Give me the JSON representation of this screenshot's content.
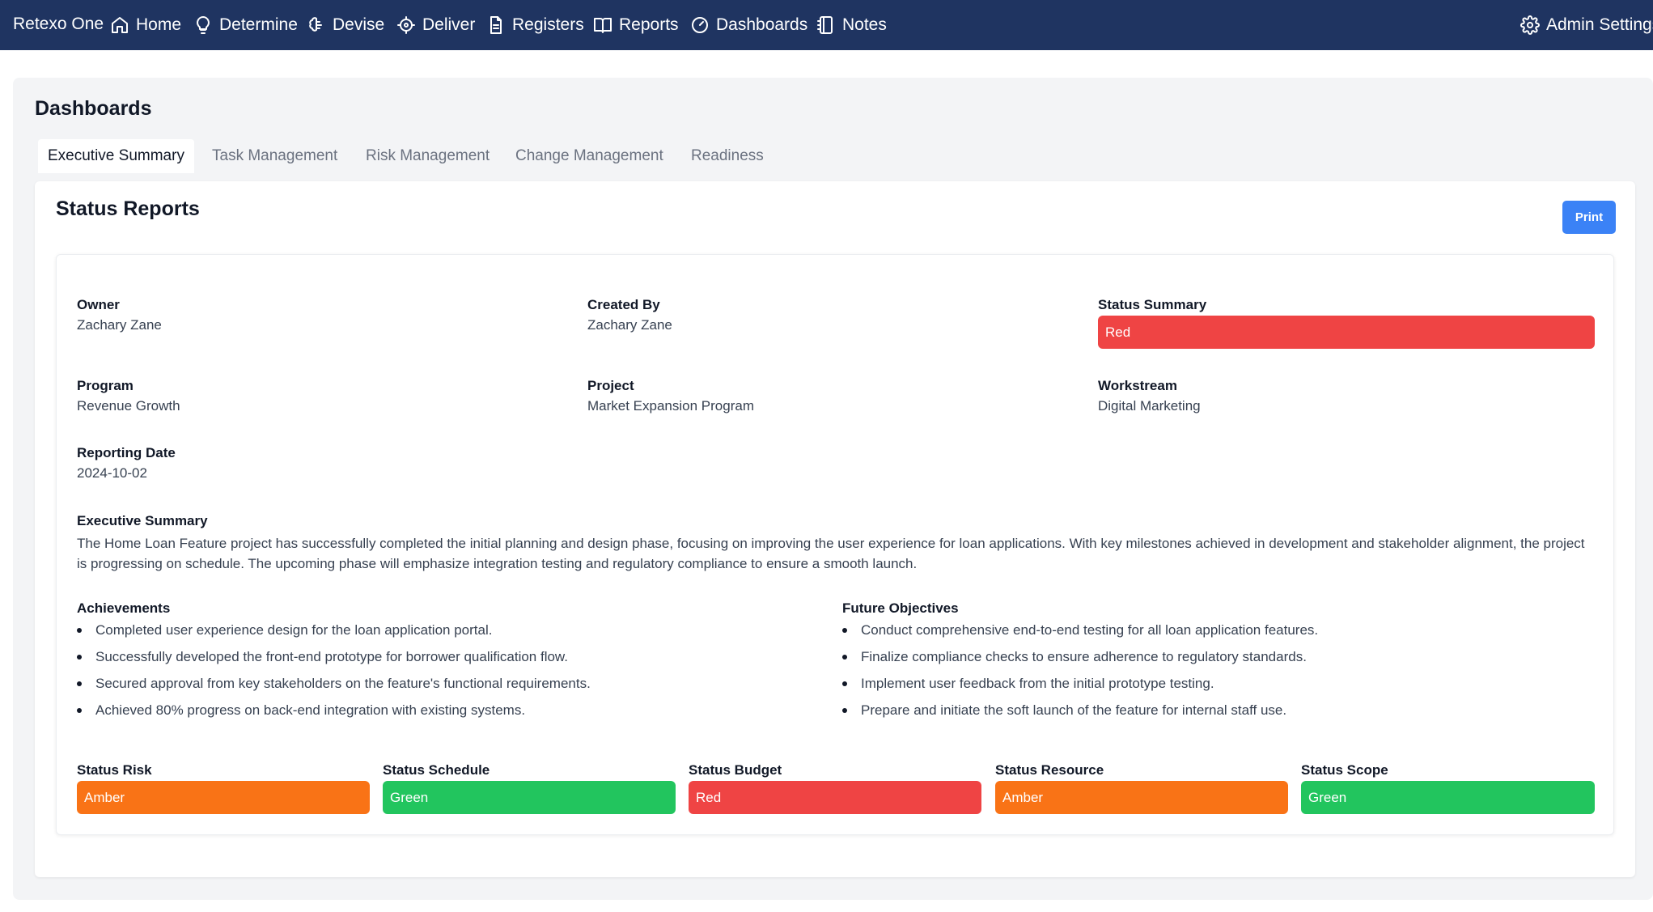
{
  "nav": {
    "brand": "Retexo One",
    "items": [
      {
        "label": "Home",
        "icon": "home-icon"
      },
      {
        "label": "Determine",
        "icon": "lightbulb-icon"
      },
      {
        "label": "Devise",
        "icon": "brain-icon"
      },
      {
        "label": "Deliver",
        "icon": "crosshair-icon"
      },
      {
        "label": "Registers",
        "icon": "file-text-icon"
      },
      {
        "label": "Reports",
        "icon": "book-open-icon"
      },
      {
        "label": "Dashboards",
        "icon": "gauge-icon"
      },
      {
        "label": "Notes",
        "icon": "notebook-icon"
      }
    ],
    "admin": {
      "label": "Admin Settings",
      "icon": "gear-icon"
    }
  },
  "page": {
    "title": "Dashboards"
  },
  "tabs": [
    {
      "label": "Executive Summary",
      "active": true
    },
    {
      "label": "Task Management",
      "active": false
    },
    {
      "label": "Risk Management",
      "active": false
    },
    {
      "label": "Change Management",
      "active": false
    },
    {
      "label": "Readiness",
      "active": false
    }
  ],
  "card": {
    "title": "Status Reports",
    "print_label": "Print"
  },
  "report": {
    "owner": {
      "label": "Owner",
      "value": "Zachary Zane"
    },
    "created_by": {
      "label": "Created By",
      "value": "Zachary Zane"
    },
    "status_summary": {
      "label": "Status Summary",
      "value": "Red"
    },
    "program": {
      "label": "Program",
      "value": "Revenue Growth"
    },
    "project": {
      "label": "Project",
      "value": "Market Expansion Program"
    },
    "workstream": {
      "label": "Workstream",
      "value": "Digital Marketing"
    },
    "reporting_date": {
      "label": "Reporting Date",
      "value": "2024-10-02"
    },
    "executive_summary": {
      "label": "Executive Summary",
      "text": "The Home Loan Feature project has successfully completed the initial planning and design phase, focusing on improving the user experience for loan applications. With key milestones achieved in development and stakeholder alignment, the project is progressing on schedule. The upcoming phase will emphasize integration testing and regulatory compliance to ensure a smooth launch."
    },
    "achievements": {
      "label": "Achievements",
      "items": [
        "Completed user experience design for the loan application portal.",
        "Successfully developed the front-end prototype for borrower qualification flow.",
        "Secured approval from key stakeholders on the feature's functional requirements.",
        "Achieved 80% progress on back-end integration with existing systems."
      ]
    },
    "future_objectives": {
      "label": "Future Objectives",
      "items": [
        "Conduct comprehensive end-to-end testing for all loan application features.",
        "Finalize compliance checks to ensure adherence to regulatory standards.",
        "Implement user feedback from the initial prototype testing.",
        "Prepare and initiate the soft launch of the feature for internal staff use."
      ]
    },
    "statuses": [
      {
        "label": "Status Risk",
        "value": "Amber"
      },
      {
        "label": "Status Schedule",
        "value": "Green"
      },
      {
        "label": "Status Budget",
        "value": "Red"
      },
      {
        "label": "Status Resource",
        "value": "Amber"
      },
      {
        "label": "Status Scope",
        "value": "Green"
      }
    ]
  },
  "colors": {
    "nav_bg": "#1f3461",
    "Red": "#ef4444",
    "Amber": "#f97316",
    "Green": "#22c55e",
    "print_button": "#3b82f6"
  }
}
